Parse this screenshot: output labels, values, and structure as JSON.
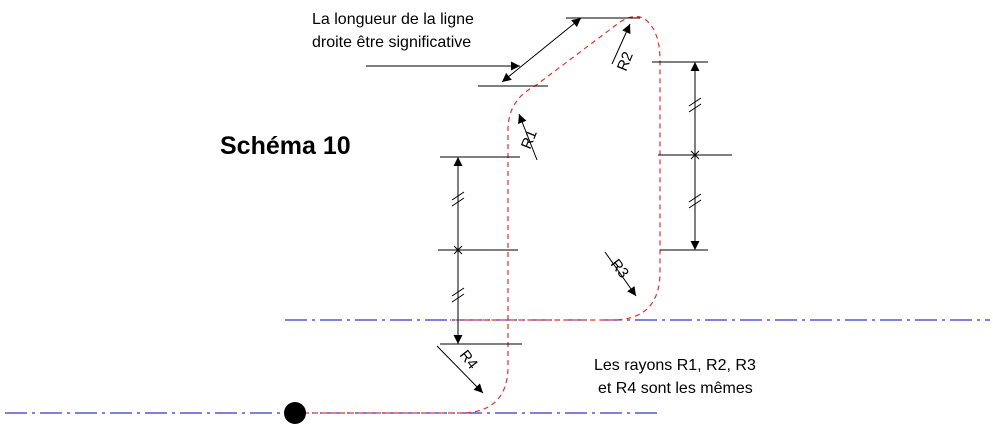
{
  "schema": {
    "title": "Schéma 10",
    "straight_line_note": {
      "line1": "La longueur de la ligne",
      "line2": "droite être significative"
    },
    "radii_note": {
      "line1": "Les rayons R1, R2, R3",
      "line2": "et R4 sont les mêmes"
    },
    "radius_labels": {
      "r1": "R1",
      "r2": "R2",
      "r3": "R3",
      "r4": "R4"
    }
  },
  "colors": {
    "path": "#e8302e",
    "centerline": "#0000c8",
    "dimension": "#000000",
    "background": "#ffffff"
  }
}
